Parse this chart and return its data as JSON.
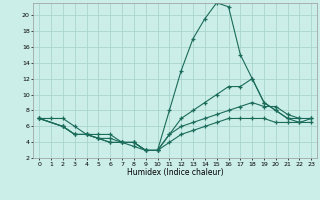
{
  "xlabel": "Humidex (Indice chaleur)",
  "background_color": "#cceee8",
  "grid_color": "#aad4ce",
  "line_color": "#1a6b5a",
  "xlim": [
    -0.5,
    23.5
  ],
  "ylim": [
    2,
    21.5
  ],
  "yticks": [
    2,
    4,
    6,
    8,
    10,
    12,
    14,
    16,
    18,
    20
  ],
  "xticks": [
    0,
    1,
    2,
    3,
    4,
    5,
    6,
    7,
    8,
    9,
    10,
    11,
    12,
    13,
    14,
    15,
    16,
    17,
    18,
    19,
    20,
    21,
    22,
    23
  ],
  "series": [
    {
      "x": [
        0,
        1,
        2,
        3,
        4,
        5,
        6,
        7,
        8,
        9,
        10,
        11,
        12,
        13,
        14,
        15,
        16,
        17,
        18,
        19,
        20,
        21,
        22
      ],
      "y": [
        7,
        7,
        7,
        6,
        5,
        5,
        5,
        4,
        3.5,
        3,
        3,
        8,
        13,
        17,
        19.5,
        21.5,
        21,
        15,
        12,
        9,
        8,
        7,
        7
      ]
    },
    {
      "x": [
        0,
        2,
        3,
        4,
        5,
        6,
        7,
        8,
        9,
        10,
        11,
        12,
        13,
        14,
        15,
        16,
        17,
        18,
        19,
        20,
        21,
        22,
        23
      ],
      "y": [
        7,
        6,
        5,
        5,
        4.5,
        4.5,
        4,
        4,
        3,
        3,
        5,
        7,
        8,
        9,
        10,
        11,
        11,
        12,
        9,
        8,
        7,
        6.5,
        7
      ]
    },
    {
      "x": [
        0,
        2,
        3,
        4,
        5,
        6,
        7,
        8,
        9,
        10,
        11,
        12,
        13,
        14,
        15,
        16,
        17,
        18,
        19,
        20,
        21,
        22,
        23
      ],
      "y": [
        7,
        6,
        5,
        5,
        4.5,
        4,
        4,
        4,
        3,
        3,
        5,
        6,
        6.5,
        7,
        7.5,
        8,
        8.5,
        9,
        8.5,
        8.5,
        7.5,
        7,
        7
      ]
    },
    {
      "x": [
        0,
        2,
        3,
        4,
        5,
        6,
        7,
        8,
        9,
        10,
        11,
        12,
        13,
        14,
        15,
        16,
        17,
        18,
        19,
        20,
        21,
        22,
        23
      ],
      "y": [
        7,
        6,
        5,
        5,
        4.5,
        4,
        4,
        4,
        3,
        3,
        4,
        5,
        5.5,
        6,
        6.5,
        7,
        7,
        7,
        7,
        6.5,
        6.5,
        6.5,
        6.5
      ]
    }
  ]
}
